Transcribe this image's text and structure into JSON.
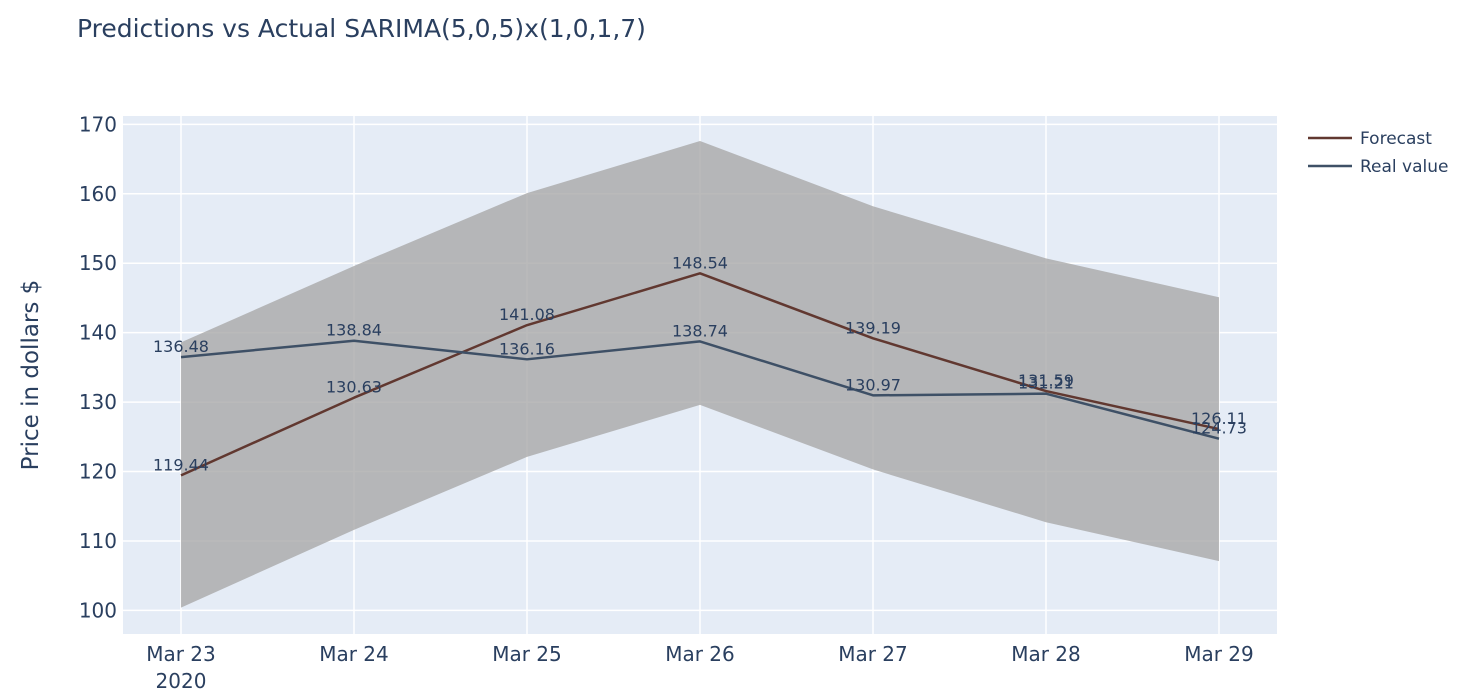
{
  "chart_data": {
    "type": "line",
    "title": "Predictions vs Actual SARIMA(5,0,5)x(1,0,1,7)",
    "ylabel": "Price in dollars $",
    "xlabel": "",
    "x": [
      "Mar 23",
      "Mar 24",
      "Mar 25",
      "Mar 26",
      "Mar 27",
      "Mar 28",
      "Mar 29"
    ],
    "x_year_label": "2020",
    "ylim": [
      96.6,
      171.2
    ],
    "yticks": [
      100,
      110,
      120,
      130,
      140,
      150,
      160,
      170
    ],
    "grid": true,
    "legend_position": "right-top",
    "legend_symbol_text": "Aa",
    "confidence_band": {
      "upper": [
        138.6,
        149.6,
        160.1,
        167.6,
        158.2,
        150.7,
        145.1
      ],
      "lower": [
        100.4,
        111.6,
        122.1,
        129.6,
        120.3,
        112.7,
        107.1
      ],
      "color": "#a9a9a9"
    },
    "series": [
      {
        "name": "Forecast",
        "color": "#613830",
        "values": [
          119.44,
          130.63,
          141.08,
          148.54,
          139.19,
          131.59,
          126.11
        ],
        "labels": [
          "119.44",
          "130.63",
          "141.08",
          "148.54",
          "139.19",
          "131.59",
          "126.11"
        ]
      },
      {
        "name": "Real value",
        "color": "#3e5066",
        "values": [
          136.48,
          138.84,
          136.16,
          138.74,
          130.97,
          131.21,
          124.73
        ],
        "labels": [
          "136.48",
          "138.84",
          "136.16",
          "138.74",
          "130.97",
          "131.21",
          "124.73"
        ]
      }
    ]
  },
  "colors": {
    "plot_bg": "#e5ecf6",
    "grid": "#ffffff",
    "text": "#2a3f5f"
  }
}
